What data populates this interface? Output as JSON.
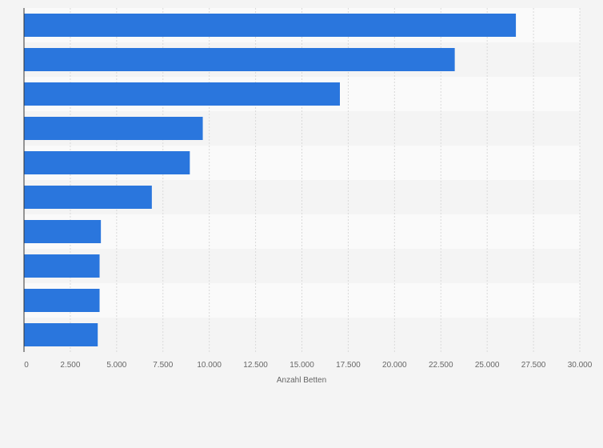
{
  "chart_data": {
    "type": "bar",
    "orientation": "horizontal",
    "title": "",
    "xlabel": "Anzahl Betten",
    "ylabel": "",
    "xlim": [
      0,
      30000
    ],
    "x_ticks": [
      0,
      2500,
      5000,
      7500,
      10000,
      12500,
      15000,
      17500,
      20000,
      22500,
      25000,
      27500,
      30000
    ],
    "x_tick_labels": [
      "0",
      "2.500",
      "5.000",
      "7.500",
      "10.000",
      "12.500",
      "15.000",
      "17.500",
      "20.000",
      "22.500",
      "25.000",
      "27.500",
      "30.000"
    ],
    "categories": [
      "",
      "",
      "",
      "",
      "",
      "",
      "",
      "",
      "",
      ""
    ],
    "values": [
      26550,
      23250,
      17050,
      9650,
      8950,
      6900,
      4150,
      4080,
      4080,
      3980
    ],
    "grid": true,
    "colors": {
      "bar": "#2a76dd",
      "band_light": "#fafafa",
      "band_dark": "#f4f4f4",
      "grid": "#d9d9d9",
      "axis": "#333333"
    }
  }
}
